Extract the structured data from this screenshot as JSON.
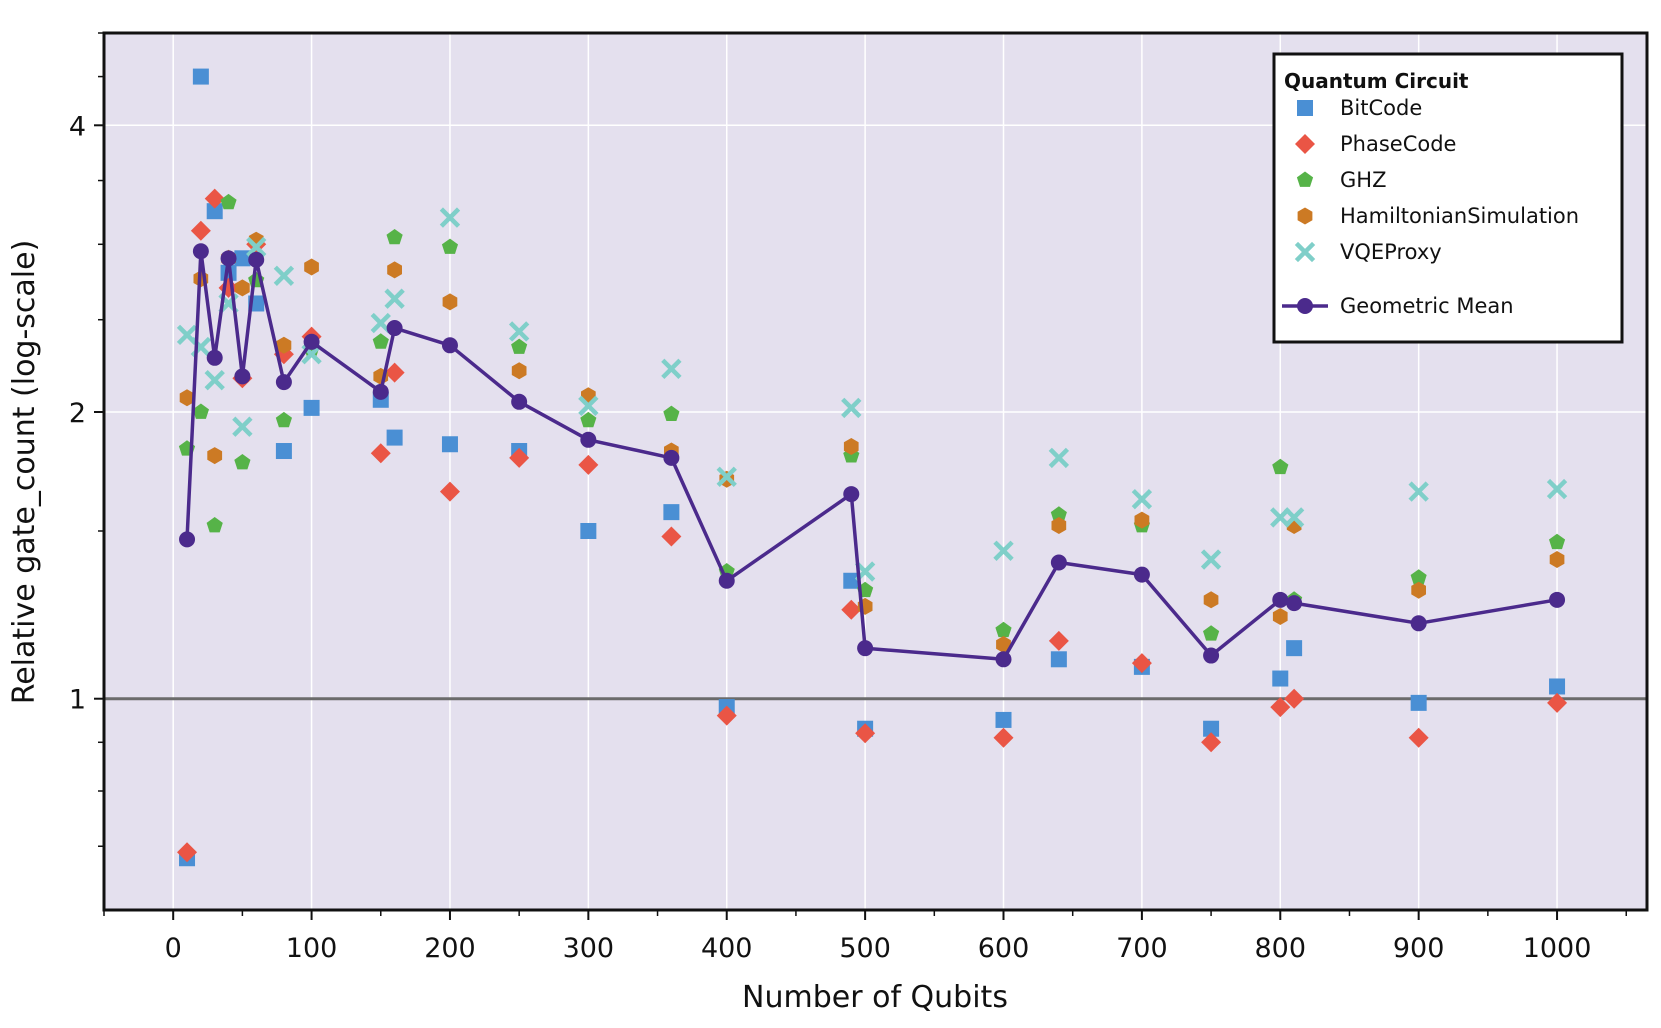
{
  "chart_data": {
    "type": "scatter",
    "xlabel": "Number of Qubits",
    "ylabel": "Relative gate_count (log-scale)",
    "yscale": "log",
    "xlim": [
      -50,
      1065
    ],
    "ylim": [
      0.6,
      5.0
    ],
    "x_ticks": [
      0,
      100,
      200,
      300,
      400,
      500,
      600,
      700,
      800,
      900,
      1000
    ],
    "x_tick_labels": [
      "0",
      "100",
      "200",
      "300",
      "400",
      "500",
      "600",
      "700",
      "800",
      "900",
      "1000"
    ],
    "y_ticks": [
      1,
      2,
      4
    ],
    "y_tick_labels": [
      "1",
      "2",
      "4"
    ],
    "grid": true,
    "reference_line_y": 1,
    "legend": {
      "title": "Quantum Circuit",
      "position": "top-right"
    },
    "series": [
      {
        "name": "BitCode",
        "marker": "square",
        "color": "#4a8fd4",
        "points": [
          [
            10,
            0.68
          ],
          [
            20,
            4.5
          ],
          [
            30,
            3.25
          ],
          [
            40,
            2.8
          ],
          [
            50,
            2.9
          ],
          [
            60,
            2.6
          ],
          [
            80,
            1.82
          ],
          [
            100,
            2.02
          ],
          [
            150,
            2.06
          ],
          [
            160,
            1.88
          ],
          [
            200,
            1.85
          ],
          [
            250,
            1.82
          ],
          [
            300,
            1.5
          ],
          [
            360,
            1.57
          ],
          [
            400,
            0.98
          ],
          [
            490,
            1.33
          ],
          [
            500,
            0.93
          ],
          [
            600,
            0.95
          ],
          [
            640,
            1.1
          ],
          [
            700,
            1.08
          ],
          [
            750,
            0.93
          ],
          [
            800,
            1.05
          ],
          [
            810,
            1.13
          ],
          [
            900,
            0.99
          ],
          [
            1000,
            1.03
          ]
        ]
      },
      {
        "name": "PhaseCode",
        "marker": "diamond",
        "color": "#ea5545",
        "points": [
          [
            10,
            0.69
          ],
          [
            20,
            3.1
          ],
          [
            30,
            3.35
          ],
          [
            40,
            2.7
          ],
          [
            50,
            2.17
          ],
          [
            60,
            3.0
          ],
          [
            80,
            2.3
          ],
          [
            100,
            2.4
          ],
          [
            150,
            1.81
          ],
          [
            160,
            2.2
          ],
          [
            200,
            1.65
          ],
          [
            250,
            1.79
          ],
          [
            300,
            1.76
          ],
          [
            360,
            1.48
          ],
          [
            400,
            0.96
          ],
          [
            490,
            1.24
          ],
          [
            500,
            0.92
          ],
          [
            600,
            0.91
          ],
          [
            640,
            1.15
          ],
          [
            700,
            1.09
          ],
          [
            750,
            0.9
          ],
          [
            800,
            0.98
          ],
          [
            810,
            1.0
          ],
          [
            900,
            0.91
          ],
          [
            1000,
            0.99
          ]
        ]
      },
      {
        "name": "GHZ",
        "marker": "pentagon",
        "color": "#56b348",
        "points": [
          [
            10,
            1.83
          ],
          [
            20,
            2.0
          ],
          [
            30,
            1.52
          ],
          [
            40,
            3.32
          ],
          [
            50,
            1.77
          ],
          [
            60,
            2.75
          ],
          [
            80,
            1.96
          ],
          [
            100,
            2.33
          ],
          [
            150,
            2.37
          ],
          [
            160,
            3.05
          ],
          [
            200,
            2.98
          ],
          [
            250,
            2.34
          ],
          [
            300,
            1.96
          ],
          [
            360,
            1.99
          ],
          [
            400,
            1.36
          ],
          [
            490,
            1.8
          ],
          [
            500,
            1.3
          ],
          [
            600,
            1.18
          ],
          [
            640,
            1.56
          ],
          [
            700,
            1.52
          ],
          [
            750,
            1.17
          ],
          [
            800,
            1.75
          ],
          [
            810,
            1.27
          ],
          [
            900,
            1.34
          ],
          [
            1000,
            1.46
          ]
        ]
      },
      {
        "name": "HamiltonianSimulation",
        "marker": "hexagon",
        "color": "#cc7a24",
        "points": [
          [
            10,
            2.07
          ],
          [
            20,
            2.76
          ],
          [
            30,
            1.8
          ],
          [
            40,
            2.9
          ],
          [
            50,
            2.7
          ],
          [
            60,
            3.03
          ],
          [
            80,
            2.35
          ],
          [
            100,
            2.84
          ],
          [
            150,
            2.18
          ],
          [
            160,
            2.82
          ],
          [
            200,
            2.61
          ],
          [
            250,
            2.21
          ],
          [
            300,
            2.08
          ],
          [
            360,
            1.82
          ],
          [
            400,
            1.7
          ],
          [
            490,
            1.84
          ],
          [
            500,
            1.25
          ],
          [
            600,
            1.14
          ],
          [
            640,
            1.52
          ],
          [
            700,
            1.54
          ],
          [
            750,
            1.27
          ],
          [
            800,
            1.22
          ],
          [
            810,
            1.52
          ],
          [
            900,
            1.3
          ],
          [
            1000,
            1.4
          ]
        ]
      },
      {
        "name": "VQEProxy",
        "marker": "cross",
        "color": "#7fcfc9",
        "points": [
          [
            10,
            2.41
          ],
          [
            20,
            2.34
          ],
          [
            30,
            2.16
          ],
          [
            40,
            2.6
          ],
          [
            50,
            1.93
          ],
          [
            60,
            2.98
          ],
          [
            80,
            2.78
          ],
          [
            100,
            2.3
          ],
          [
            150,
            2.48
          ],
          [
            160,
            2.63
          ],
          [
            200,
            3.2
          ],
          [
            250,
            2.43
          ],
          [
            300,
            2.03
          ],
          [
            360,
            2.22
          ],
          [
            400,
            1.71
          ],
          [
            490,
            2.02
          ],
          [
            500,
            1.36
          ],
          [
            600,
            1.43
          ],
          [
            640,
            1.79
          ],
          [
            700,
            1.62
          ],
          [
            750,
            1.4
          ],
          [
            800,
            1.55
          ],
          [
            810,
            1.55
          ],
          [
            900,
            1.65
          ],
          [
            1000,
            1.66
          ]
        ]
      },
      {
        "name": "Geometric Mean",
        "marker": "circle",
        "line": true,
        "color": "#4b2a8c",
        "points": [
          [
            10,
            1.47
          ],
          [
            20,
            2.95
          ],
          [
            30,
            2.28
          ],
          [
            40,
            2.9
          ],
          [
            50,
            2.18
          ],
          [
            60,
            2.89
          ],
          [
            80,
            2.15
          ],
          [
            100,
            2.37
          ],
          [
            150,
            2.1
          ],
          [
            160,
            2.45
          ],
          [
            200,
            2.35
          ],
          [
            250,
            2.05
          ],
          [
            300,
            1.87
          ],
          [
            360,
            1.79
          ],
          [
            400,
            1.33
          ],
          [
            490,
            1.64
          ],
          [
            500,
            1.13
          ],
          [
            600,
            1.1
          ],
          [
            640,
            1.39
          ],
          [
            700,
            1.35
          ],
          [
            750,
            1.11
          ],
          [
            800,
            1.27
          ],
          [
            810,
            1.26
          ],
          [
            900,
            1.2
          ],
          [
            1000,
            1.27
          ]
        ]
      }
    ]
  }
}
